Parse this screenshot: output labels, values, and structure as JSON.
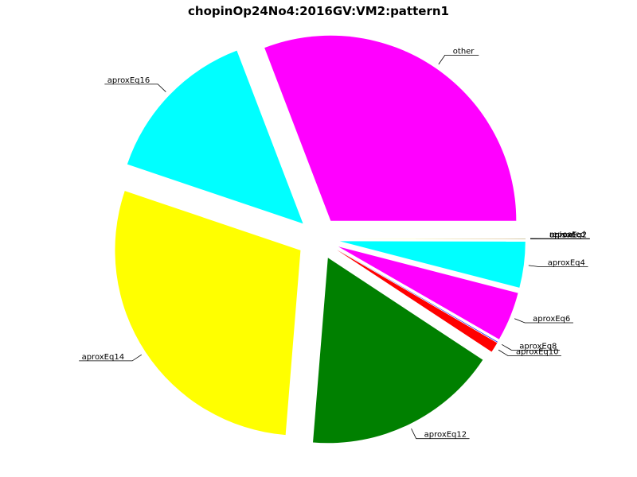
{
  "chart_data": {
    "type": "pie",
    "title": "chopinOp24No4:2016GV:VM2:pattern1",
    "start_angle_deg": 0,
    "direction": "counterclockwise",
    "slices": [
      {
        "label": "other",
        "value": 30.8,
        "color": "#ff00ff"
      },
      {
        "label": "aproxEq16",
        "value": 14.0,
        "color": "#00ffff"
      },
      {
        "label": "aproxEq14",
        "value": 28.9,
        "color": "#ffff00"
      },
      {
        "label": "aproxEq12",
        "value": 17.0,
        "color": "#008000"
      },
      {
        "label": "aproxEq10",
        "value": 0.9,
        "color": "#ff0000"
      },
      {
        "label": "aproxEq8",
        "value": 0.05,
        "color": "#0000ff"
      },
      {
        "label": "aproxEq6",
        "value": 4.3,
        "color": "#ff00ff"
      },
      {
        "label": "aproxEq4",
        "value": 4.0,
        "color": "#00ffff"
      },
      {
        "label": "aproxEq2",
        "value": 0.01,
        "color": "#ffff00"
      },
      {
        "label": "unison",
        "value": 0.01,
        "color": "#008000"
      },
      {
        "label": "repeated",
        "value": 0.01,
        "color": "#ff0000"
      }
    ]
  }
}
